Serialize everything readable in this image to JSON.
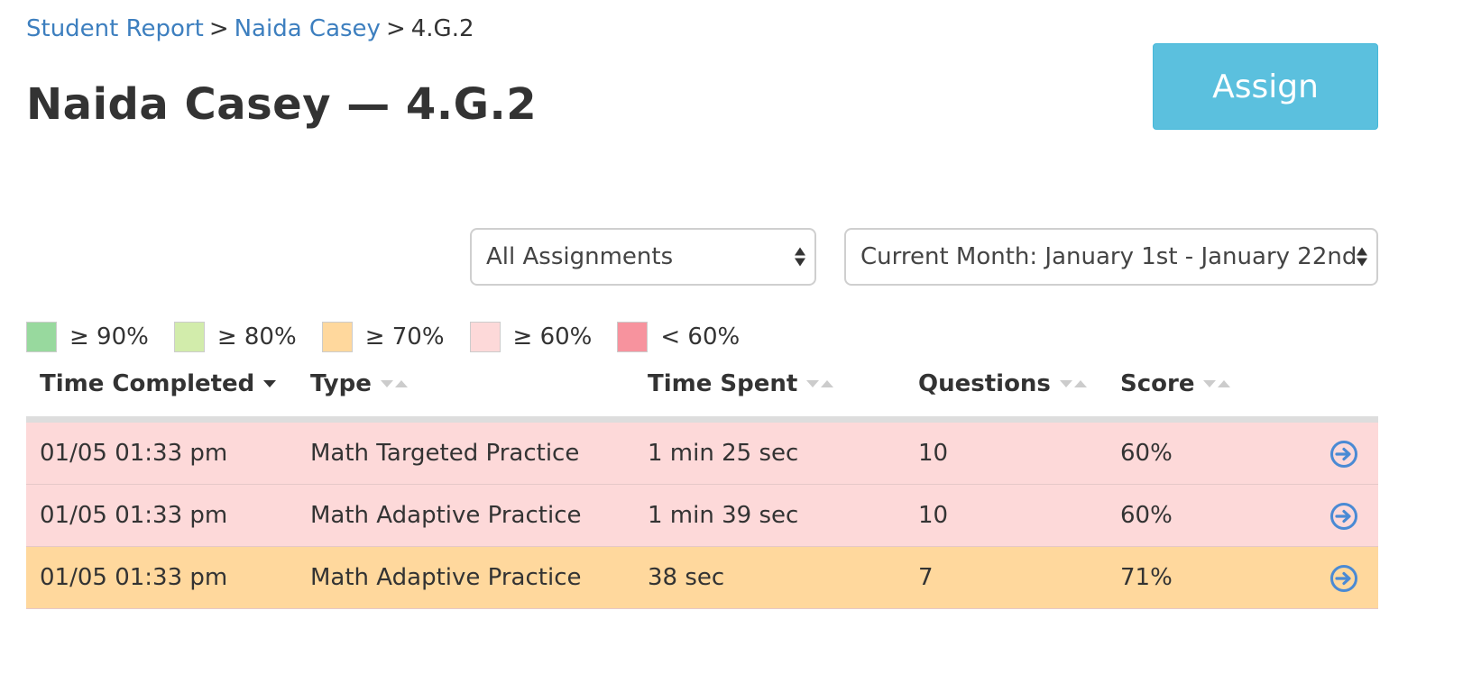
{
  "breadcrumb": {
    "items": [
      "Student Report",
      "Naida Casey"
    ],
    "separator": ">",
    "current": "4.G.2"
  },
  "page_title": "Naida Casey — 4.G.2",
  "assign_button": {
    "label": "Assign",
    "color": "#5bc0de"
  },
  "filters": {
    "assignments": {
      "selected": "All Assignments"
    },
    "date_range": {
      "selected": "Current Month: January 1st - January 22nd"
    }
  },
  "legend": [
    {
      "label": "≥ 90%",
      "color": "#98d99e"
    },
    {
      "label": "≥ 80%",
      "color": "#d2ecab"
    },
    {
      "label": "≥ 70%",
      "color": "#ffd89d"
    },
    {
      "label": "≥ 60%",
      "color": "#fdd9d9"
    },
    {
      "label": "< 60%",
      "color": "#f7939e"
    }
  ],
  "table": {
    "columns": [
      "Time Completed",
      "Type",
      "Time Spent",
      "Questions",
      "Score"
    ],
    "sorted_column": "Time Completed",
    "rows": [
      {
        "time_completed": "01/05 01:33 pm",
        "type": "Math Targeted Practice",
        "time_spent": "1 min 25 sec",
        "questions": "10",
        "score": "60%",
        "color": "#fdd9d9"
      },
      {
        "time_completed": "01/05 01:33 pm",
        "type": "Math Adaptive Practice",
        "time_spent": "1 min 39 sec",
        "questions": "10",
        "score": "60%",
        "color": "#fdd9d9"
      },
      {
        "time_completed": "01/05 01:33 pm",
        "type": "Math Adaptive Practice",
        "time_spent": "38 sec",
        "questions": "7",
        "score": "71%",
        "color": "#ffd89d"
      }
    ]
  },
  "icons": {
    "row_action": "arrow-right-circle-icon",
    "row_action_color": "#4a8ad4"
  }
}
